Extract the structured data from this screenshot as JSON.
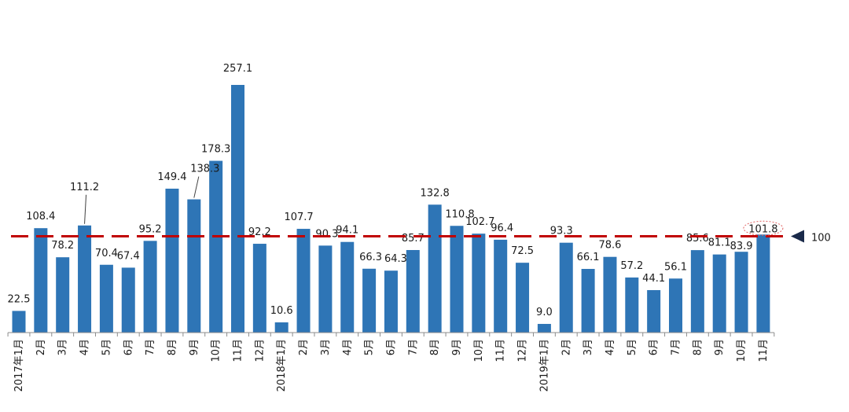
{
  "chart_data": {
    "type": "bar",
    "title": "",
    "xlabel": "",
    "ylabel": "",
    "categories": [
      "2017年1月",
      "2月",
      "3月",
      "4月",
      "5月",
      "6月",
      "7月",
      "8月",
      "9月",
      "10月",
      "11月",
      "12月",
      "2018年1月",
      "2月",
      "3月",
      "4月",
      "5月",
      "6月",
      "7月",
      "8月",
      "9月",
      "10月",
      "11月",
      "12月",
      "2019年1月",
      "2月",
      "3月",
      "4月",
      "5月",
      "6月",
      "7月",
      "8月",
      "9月",
      "10月",
      "11月"
    ],
    "values": [
      22.5,
      108.4,
      78.2,
      111.2,
      70.4,
      67.4,
      95.2,
      149.4,
      138.3,
      178.3,
      257.1,
      92.2,
      10.6,
      107.7,
      90.3,
      94.1,
      66.3,
      64.3,
      85.7,
      132.8,
      110.8,
      102.7,
      96.4,
      72.5,
      9.0,
      93.3,
      66.1,
      78.6,
      57.2,
      44.1,
      56.1,
      85.6,
      81.1,
      83.9,
      101.8
    ],
    "data_labels": [
      "22.5",
      "108.4",
      "78.2",
      "111.2",
      "70.4",
      "67.4",
      "95.2",
      "149.4",
      "138.3",
      "178.3",
      "257.1",
      "92.2",
      "10.6",
      "107.7",
      "90.3",
      "94.1",
      "66.3",
      "64.3",
      "85.7",
      "132.8",
      "110.8",
      "102.7",
      "96.4",
      "72.5",
      "9.0",
      "93.3",
      "66.1",
      "78.6",
      "57.2",
      "44.1",
      "56.1",
      "85.6",
      "81.1",
      "83.9",
      "101.8"
    ],
    "reference_line": {
      "value": 100,
      "label": "100",
      "color": "#c00000",
      "style": "dashed"
    },
    "highlighted_label_index": 34,
    "ylim": [
      0,
      280
    ],
    "grid": false,
    "legend": "none",
    "bar_color": "#2e75b6"
  }
}
